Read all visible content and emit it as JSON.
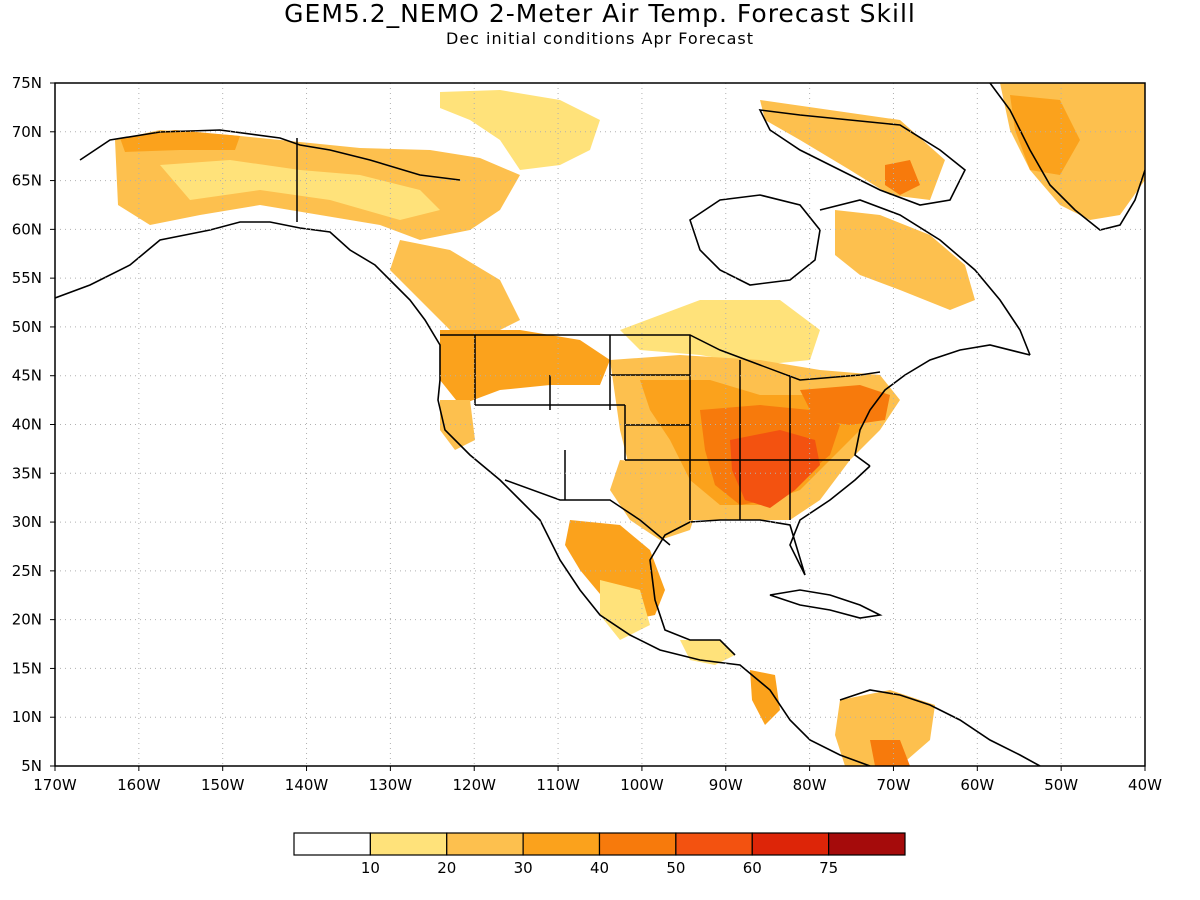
{
  "title": "GEM5.2_NEMO 2-Meter Air Temp. Forecast Skill",
  "subtitle": "Dec initial conditions  Apr Forecast",
  "map": {
    "lon_range": [
      -170,
      -40
    ],
    "lat_range": [
      5,
      75
    ],
    "lon_ticks": [
      -170,
      -160,
      -150,
      -140,
      -130,
      -120,
      -110,
      -100,
      -90,
      -80,
      -70,
      -60,
      -50,
      -40
    ],
    "lon_labels": [
      "170W",
      "160W",
      "150W",
      "140W",
      "130W",
      "120W",
      "110W",
      "100W",
      "90W",
      "80W",
      "70W",
      "60W",
      "50W",
      "40W"
    ],
    "lat_ticks": [
      75,
      70,
      65,
      60,
      55,
      50,
      45,
      40,
      35,
      30,
      25,
      20,
      15,
      10,
      5
    ],
    "lat_labels": [
      "75N",
      "70N",
      "65N",
      "60N",
      "55N",
      "50N",
      "45N",
      "40N",
      "35N",
      "30N",
      "25N",
      "20N",
      "15N",
      "10N",
      "5N"
    ],
    "grid": "dotted"
  },
  "colorbar": {
    "colors": [
      "#ffffff",
      "#ffe27a",
      "#fdc04e",
      "#fba21c",
      "#f77a0c",
      "#f35210",
      "#dd2508",
      "#a50b0b"
    ],
    "labels": [
      "10",
      "20",
      "30",
      "40",
      "50",
      "60",
      "75"
    ]
  },
  "colors": {
    "land_outline": "#000000",
    "grid": "#b0b0b0"
  }
}
